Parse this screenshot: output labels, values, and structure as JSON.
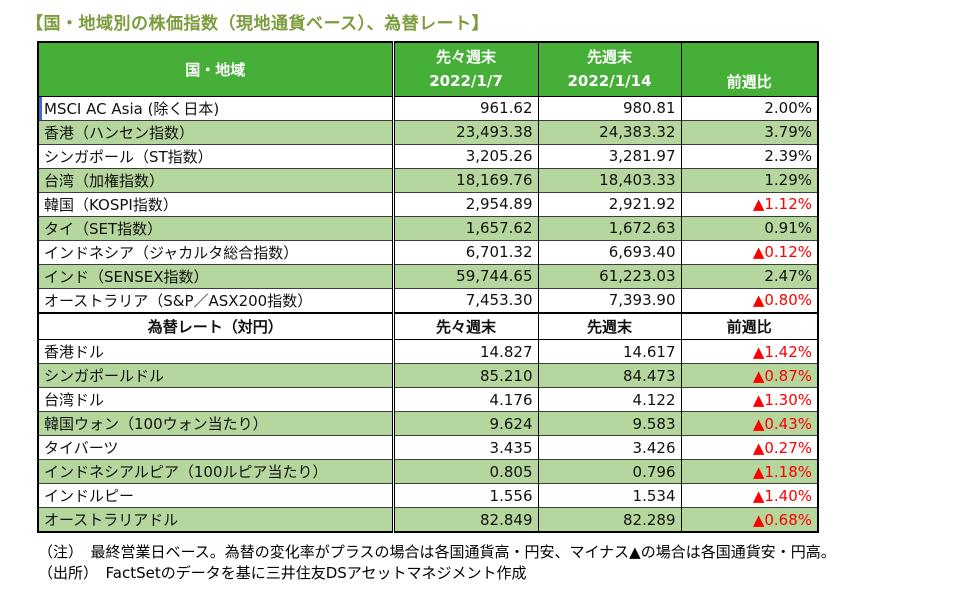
{
  "title": "【国・地域別の株価指数（現地通貨ベース）、為替レート】",
  "colors": {
    "header_green": "#46af37",
    "row_green": "#b5d79e",
    "negative_red": "#fe0000",
    "title_olive": "#7d9c3e"
  },
  "stock_section": {
    "header": {
      "region": "国・地域",
      "week_before_last": "先々週末",
      "week_before_last_date": "2022/1/7",
      "last_week": "先週末",
      "last_week_date": "2022/1/14",
      "wow_change": "前週比"
    },
    "rows": [
      {
        "name": "MSCI AC Asia (除く日本)",
        "week_before_last": "961.62",
        "last_week": "980.81",
        "change": "2.00%",
        "negative": false
      },
      {
        "name": "香港（ハンセン指数）",
        "week_before_last": "23,493.38",
        "last_week": "24,383.32",
        "change": "3.79%",
        "negative": false
      },
      {
        "name": "シンガポール（ST指数）",
        "week_before_last": "3,205.26",
        "last_week": "3,281.97",
        "change": "2.39%",
        "negative": false
      },
      {
        "name": "台湾（加権指数）",
        "week_before_last": "18,169.76",
        "last_week": "18,403.33",
        "change": "1.29%",
        "negative": false
      },
      {
        "name": "韓国（KOSPI指数）",
        "week_before_last": "2,954.89",
        "last_week": "2,921.92",
        "change": "▲1.12%",
        "negative": true
      },
      {
        "name": "タイ（SET指数）",
        "week_before_last": "1,657.62",
        "last_week": "1,672.63",
        "change": "0.91%",
        "negative": false
      },
      {
        "name": "インドネシア（ジャカルタ総合指数）",
        "week_before_last": "6,701.32",
        "last_week": "6,693.40",
        "change": "▲0.12%",
        "negative": true
      },
      {
        "name": "インド（SENSEX指数）",
        "week_before_last": "59,744.65",
        "last_week": "61,223.03",
        "change": "2.47%",
        "negative": false
      },
      {
        "name": "オーストラリア（S&P／ASX200指数）",
        "week_before_last": "7,453.30",
        "last_week": "7,393.90",
        "change": "▲0.80%",
        "negative": true
      }
    ]
  },
  "fx_section": {
    "header": {
      "label": "為替レート（対円）",
      "week_before_last": "先々週末",
      "last_week": "先週末",
      "wow_change": "前週比"
    },
    "rows": [
      {
        "name": "香港ドル",
        "week_before_last": "14.827",
        "last_week": "14.617",
        "change": "▲1.42%",
        "negative": true
      },
      {
        "name": "シンガポールドル",
        "week_before_last": "85.210",
        "last_week": "84.473",
        "change": "▲0.87%",
        "negative": true
      },
      {
        "name": "台湾ドル",
        "week_before_last": "4.176",
        "last_week": "4.122",
        "change": "▲1.30%",
        "negative": true
      },
      {
        "name": "韓国ウォン（100ウォン当たり）",
        "week_before_last": "9.624",
        "last_week": "9.583",
        "change": "▲0.43%",
        "negative": true
      },
      {
        "name": "タイバーツ",
        "week_before_last": "3.435",
        "last_week": "3.426",
        "change": "▲0.27%",
        "negative": true
      },
      {
        "name": "インドネシアルピア（100ルピア当たり）",
        "week_before_last": "0.805",
        "last_week": "0.796",
        "change": "▲1.18%",
        "negative": true
      },
      {
        "name": "インドルピー",
        "week_before_last": "1.556",
        "last_week": "1.534",
        "change": "▲1.40%",
        "negative": true
      },
      {
        "name": "オーストラリアドル",
        "week_before_last": "82.849",
        "last_week": "82.289",
        "change": "▲0.68%",
        "negative": true
      }
    ]
  },
  "notes": {
    "note": "（注）　最終営業日ベース。為替の変化率がプラスの場合は各国通貨高・円安、マイナス▲の場合は各国通貨安・円高。",
    "source": "（出所）　FactSetのデータを基に三井住友DSアセットマネジメント作成"
  }
}
